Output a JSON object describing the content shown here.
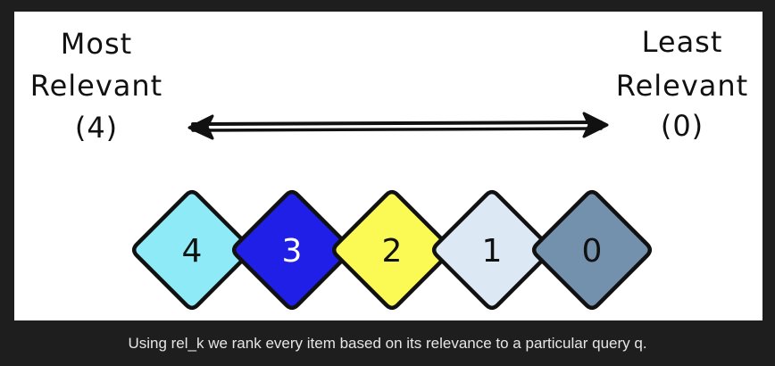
{
  "figure": {
    "left_label": [
      "Most",
      "Relevant",
      "(4)"
    ],
    "right_label": [
      "Least",
      "Relevant",
      "(0)"
    ],
    "arrow": "double-headed",
    "diamonds": [
      {
        "value": "4",
        "fill": "#8eeaf7",
        "text_color": "#111111"
      },
      {
        "value": "3",
        "fill": "#1f1fe8",
        "text_color": "#ffffff"
      },
      {
        "value": "2",
        "fill": "#fbfa55",
        "text_color": "#111111"
      },
      {
        "value": "1",
        "fill": "#dde8f5",
        "text_color": "#111111"
      },
      {
        "value": "0",
        "fill": "#7390ad",
        "text_color": "#111111"
      }
    ]
  },
  "caption": "Using rel_k we rank every item based on its relevance to a particular query q."
}
